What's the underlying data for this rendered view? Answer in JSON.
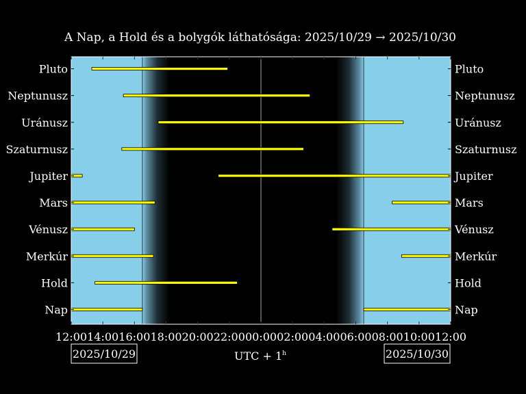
{
  "chart_data": {
    "type": "bar",
    "title": "A Nap, a Hold és a bolygók láthatósága: 2025/10/29 → 2025/10/30",
    "xlabel": "UTC + 1",
    "xlabel_superscript": "h",
    "xlim_hours": [
      12,
      36
    ],
    "x_ticks": [
      "12:00",
      "14:00",
      "16:00",
      "18:00",
      "20:00",
      "22:00",
      "00:00",
      "02:00",
      "04:00",
      "06:00",
      "08:00",
      "10:00",
      "12:00"
    ],
    "date_left": "2025/10/29",
    "date_right": "2025/10/30",
    "sunset_hour": 16.5,
    "sunrise_hour": 30.5,
    "midnight_hour": 24,
    "colors": {
      "day": "#87ceeb",
      "night": "#000000",
      "bar": "#ffff00",
      "bar_edge": "#000000"
    },
    "categories": [
      "Pluto",
      "Neptunusz",
      "Uránusz",
      "Szaturnusz",
      "Jupiter",
      "Mars",
      "Vénusz",
      "Merkúr",
      "Hold",
      "Nap"
    ],
    "bars": [
      {
        "name": "Pluto",
        "intervals": [
          [
            13.3,
            21.9
          ]
        ]
      },
      {
        "name": "Neptunusz",
        "intervals": [
          [
            15.3,
            27.1
          ]
        ]
      },
      {
        "name": "Uránusz",
        "intervals": [
          [
            17.5,
            33.0
          ]
        ]
      },
      {
        "name": "Szaturnusz",
        "intervals": [
          [
            15.2,
            26.7
          ]
        ]
      },
      {
        "name": "Jupiter",
        "intervals": [
          [
            12.0,
            12.7
          ],
          [
            21.3,
            36.0
          ]
        ]
      },
      {
        "name": "Mars",
        "intervals": [
          [
            12.0,
            17.3
          ],
          [
            32.3,
            36.0
          ]
        ]
      },
      {
        "name": "Vénusz",
        "intervals": [
          [
            12.0,
            16.0
          ],
          [
            28.5,
            36.0
          ]
        ]
      },
      {
        "name": "Merkúr",
        "intervals": [
          [
            12.0,
            17.2
          ],
          [
            32.9,
            36.0
          ]
        ]
      },
      {
        "name": "Hold",
        "intervals": [
          [
            13.5,
            22.5
          ]
        ]
      },
      {
        "name": "Nap",
        "intervals": [
          [
            12.0,
            16.5
          ],
          [
            30.5,
            36.0
          ]
        ]
      }
    ]
  }
}
